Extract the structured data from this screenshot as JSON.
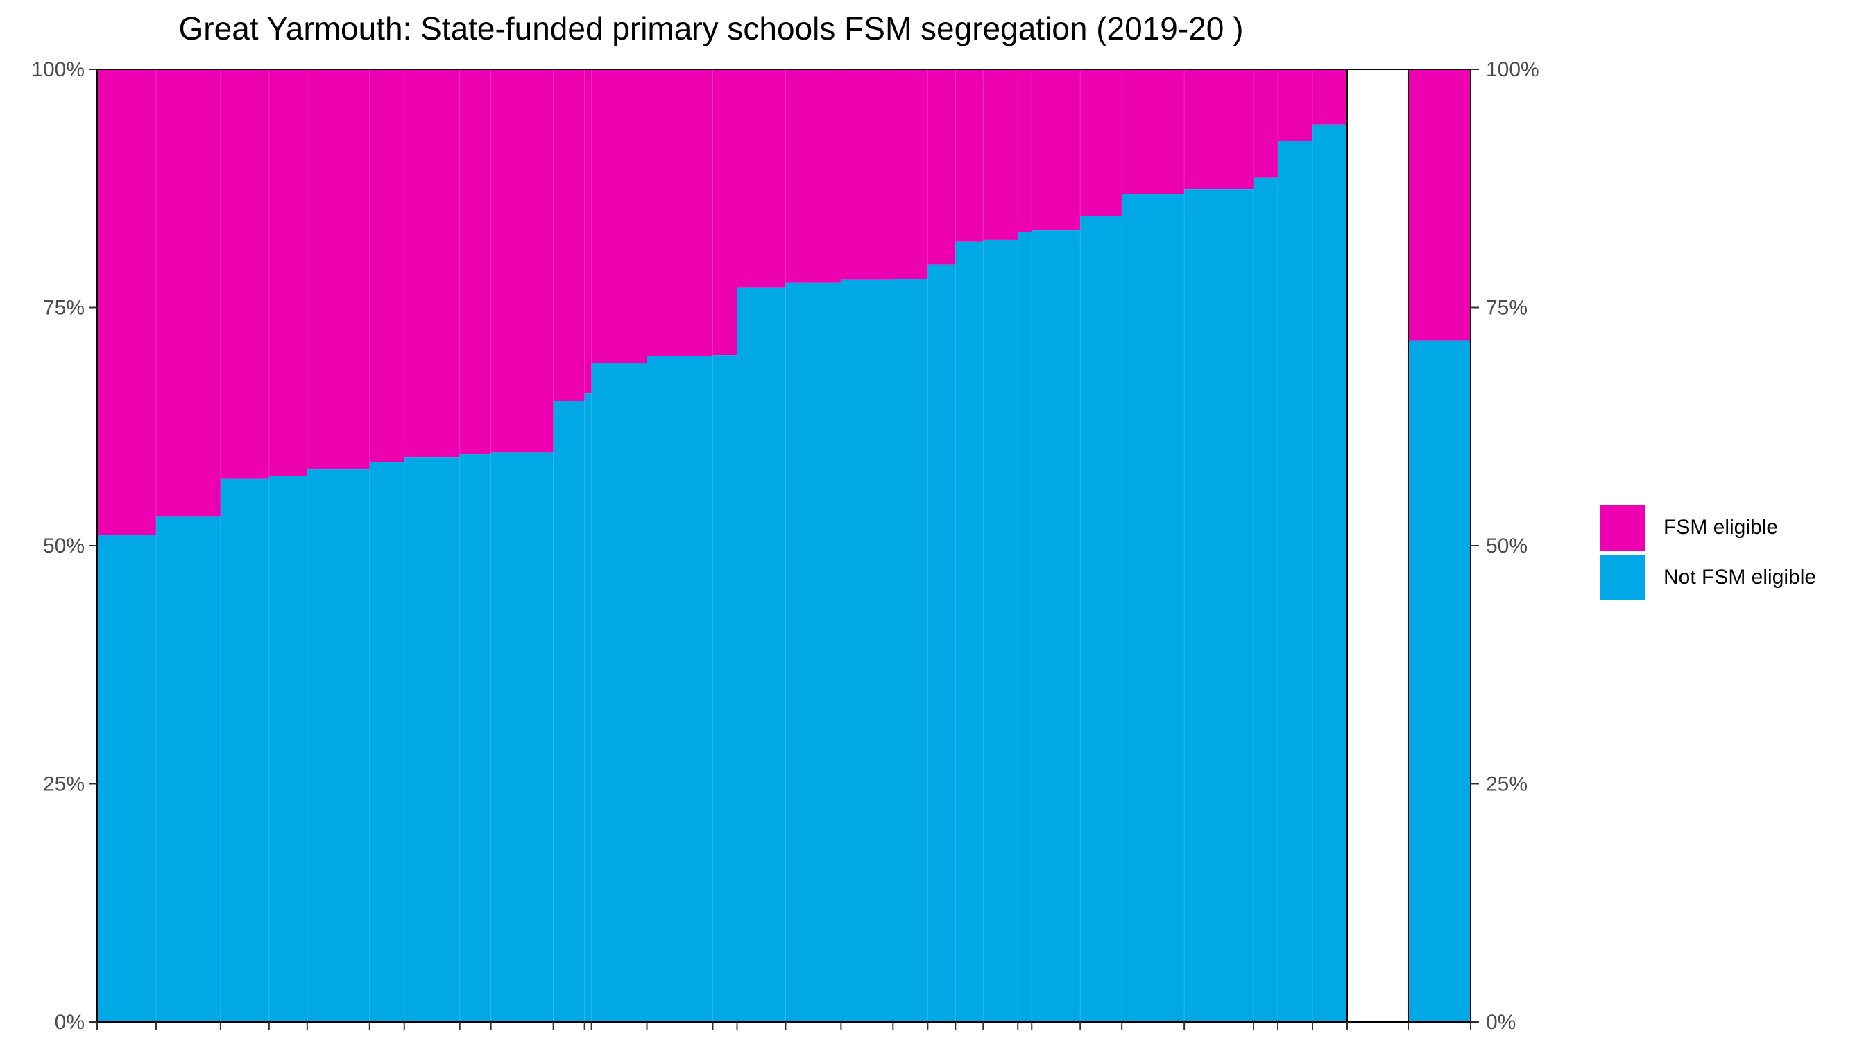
{
  "chart_data": {
    "type": "bar",
    "title": "Great Yarmouth: State-funded primary schools FSM segregation (2019-20 )",
    "xlabel": "",
    "ylabel": "",
    "ylim": [
      0,
      100
    ],
    "y_ticks": [
      "0%",
      "25%",
      "50%",
      "75%",
      "100%"
    ],
    "legend_position": "right",
    "series": [
      {
        "name": "FSM eligible",
        "color": "#EC00B0"
      },
      {
        "name": "Not FSM eligible",
        "color": "#00A8E6"
      }
    ],
    "schools_not_fsm_pct": [
      51.1,
      53.1,
      57.0,
      57.3,
      58.0,
      58.8,
      59.3,
      59.6,
      59.8,
      65.2,
      66.0,
      69.2,
      69.9,
      70.0,
      77.1,
      77.6,
      77.9,
      78.0,
      79.5,
      81.9,
      82.1,
      82.9,
      83.1,
      84.6,
      86.9,
      87.4,
      88.6,
      92.5,
      94.2
    ],
    "schools_width": [
      85,
      93,
      70,
      55,
      90,
      50,
      80,
      45,
      90,
      45,
      10,
      80,
      95,
      35,
      70,
      80,
      75,
      50,
      40,
      40,
      50,
      20,
      70,
      60,
      90,
      100,
      35,
      50,
      50
    ],
    "total_not_fsm_pct": 71.5
  },
  "legend": {
    "fsm_label": "FSM eligible",
    "not_fsm_label": "Not FSM eligible"
  }
}
